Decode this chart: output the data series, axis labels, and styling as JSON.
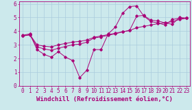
{
  "xlabel": "Windchill (Refroidissement éolien,°C)",
  "background_color": "#cce9ec",
  "line_color": "#aa0077",
  "grid_color": "#aaccdd",
  "xlim": [
    -0.5,
    23.5
  ],
  "ylim": [
    0,
    6.2
  ],
  "xticks": [
    0,
    1,
    2,
    3,
    4,
    5,
    6,
    7,
    8,
    9,
    10,
    11,
    12,
    13,
    14,
    15,
    16,
    17,
    18,
    19,
    20,
    21,
    22,
    23
  ],
  "yticks": [
    0,
    1,
    2,
    3,
    4,
    5,
    6
  ],
  "series1_x": [
    0,
    1,
    2,
    3,
    4,
    5,
    6,
    7,
    8,
    9,
    10,
    11,
    12,
    13,
    14,
    15,
    16,
    17,
    18,
    19,
    20,
    21,
    22,
    23
  ],
  "series1_y": [
    3.7,
    3.8,
    2.65,
    2.3,
    2.1,
    2.5,
    2.1,
    1.85,
    0.6,
    1.15,
    2.65,
    2.65,
    3.8,
    4.3,
    5.3,
    5.8,
    5.85,
    5.1,
    4.7,
    4.6,
    4.45,
    4.85,
    4.95,
    4.95
  ],
  "series2_x": [
    0,
    1,
    2,
    3,
    4,
    5,
    6,
    7,
    8,
    9,
    10,
    11,
    12,
    13,
    14,
    15,
    16,
    17,
    18,
    19,
    20,
    21,
    22,
    23
  ],
  "series2_y": [
    3.65,
    3.75,
    3.0,
    2.9,
    2.85,
    3.0,
    3.1,
    3.2,
    3.25,
    3.35,
    3.55,
    3.65,
    3.75,
    3.85,
    3.95,
    4.05,
    4.25,
    4.35,
    4.45,
    4.55,
    4.6,
    4.7,
    4.85,
    4.95
  ],
  "series3_x": [
    0,
    1,
    2,
    3,
    4,
    5,
    6,
    7,
    8,
    9,
    10,
    11,
    12,
    13,
    14,
    15,
    16,
    17,
    18,
    19,
    20,
    21,
    22,
    23
  ],
  "series3_y": [
    3.65,
    3.72,
    2.85,
    2.7,
    2.6,
    2.75,
    2.88,
    3.0,
    3.05,
    3.2,
    3.5,
    3.58,
    3.7,
    3.8,
    3.95,
    4.05,
    5.1,
    5.15,
    4.8,
    4.75,
    4.6,
    4.5,
    5.0,
    4.95
  ],
  "xlabel_fontsize": 6.5,
  "tick_fontsize": 5.5
}
